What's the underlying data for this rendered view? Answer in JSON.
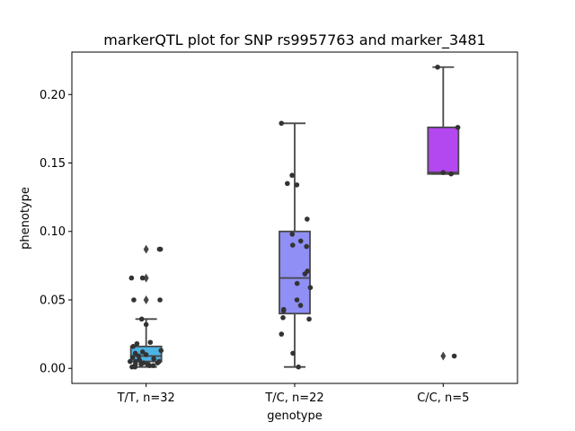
{
  "chart_data": {
    "type": "box",
    "title": "markerQTL plot for SNP rs9957763 and marker_3481",
    "xlabel": "genotype",
    "ylabel": "phenotype",
    "ylim": [
      -0.011,
      0.231
    ],
    "yticks": [
      0.0,
      0.05,
      0.1,
      0.15,
      0.2
    ],
    "ytick_labels": [
      "0.00",
      "0.05",
      "0.10",
      "0.15",
      "0.20"
    ],
    "grid": false,
    "categories": [
      "T/T, n=32",
      "T/C, n=22",
      "C/C, n=5"
    ],
    "groups": [
      {
        "category": "T/T, n=32",
        "color": "#4cb3e6",
        "box": {
          "q1": 0.005,
          "median": 0.009,
          "q3": 0.016,
          "whisker_low": 0.001,
          "whisker_high": 0.036
        },
        "outliers": [
          0.087,
          0.066,
          0.05
        ],
        "points": [
          0.087,
          0.087,
          0.066,
          0.066,
          0.05,
          0.05,
          0.036,
          0.032,
          0.019,
          0.018,
          0.016,
          0.013,
          0.012,
          0.011,
          0.01,
          0.009,
          0.008,
          0.007,
          0.006,
          0.006,
          0.005,
          0.005,
          0.005,
          0.004,
          0.004,
          0.003,
          0.003,
          0.003,
          0.002,
          0.002,
          0.001,
          0.001
        ]
      },
      {
        "category": "T/C, n=22",
        "color": "#8f8ff5",
        "box": {
          "q1": 0.04,
          "median": 0.066,
          "q3": 0.1,
          "whisker_low": 0.001,
          "whisker_high": 0.179
        },
        "outliers": [],
        "points": [
          0.179,
          0.141,
          0.135,
          0.134,
          0.109,
          0.098,
          0.093,
          0.09,
          0.089,
          0.071,
          0.062,
          0.059,
          0.05,
          0.046,
          0.043,
          0.042,
          0.037,
          0.036,
          0.025,
          0.011,
          0.001,
          0.069
        ]
      },
      {
        "category": "C/C, n=5",
        "color": "#b347f0",
        "box": {
          "q1": 0.142,
          "median": 0.143,
          "q3": 0.176,
          "whisker_low": 0.142,
          "whisker_high": 0.22
        },
        "outliers": [
          0.009
        ],
        "points": [
          0.22,
          0.176,
          0.143,
          0.142,
          0.009
        ]
      }
    ]
  }
}
